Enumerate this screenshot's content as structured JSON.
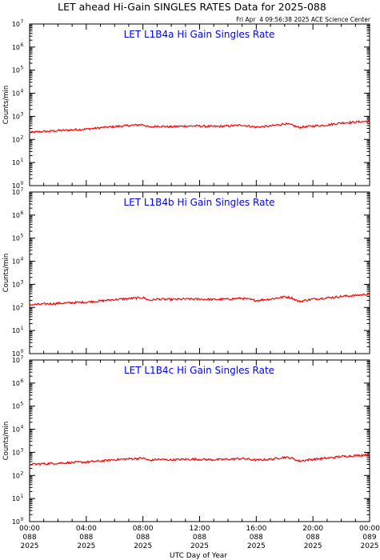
{
  "header": {
    "title": "LET ahead Hi-Gain SINGLES RATES Data for 2025-088",
    "timestamp": "Fri Apr  4 09:56:38 2025 ACE Science Center"
  },
  "colors": {
    "series": "#ff0000",
    "panel_title": "#0000ff",
    "axis": "#000000"
  },
  "chart_data": [
    {
      "type": "line",
      "title": "LET L1B4a Hi Gain Singles Rate",
      "ylabel": "Counts/min",
      "yscale": "log",
      "ylim": [
        1,
        10000000
      ],
      "xlim": [
        0,
        24
      ],
      "ytick_labels": [
        {
          "base": "10",
          "exp": "0"
        },
        {
          "base": "10",
          "exp": "1"
        },
        {
          "base": "10",
          "exp": "2"
        },
        {
          "base": "10",
          "exp": "3"
        },
        {
          "base": "10",
          "exp": "4"
        },
        {
          "base": "10",
          "exp": "5"
        },
        {
          "base": "10",
          "exp": "6"
        },
        {
          "base": "10",
          "exp": "7"
        }
      ],
      "series": [
        {
          "x": [
            0,
            1,
            2,
            3,
            4,
            5,
            6,
            7,
            8,
            8.5,
            9,
            10,
            11,
            12,
            13,
            14,
            15,
            16,
            17,
            18,
            18.5,
            19,
            20,
            21,
            22,
            23,
            24
          ],
          "values": [
            200,
            220,
            240,
            260,
            280,
            320,
            360,
            400,
            440,
            330,
            380,
            350,
            380,
            380,
            360,
            380,
            420,
            340,
            380,
            480,
            420,
            330,
            380,
            420,
            520,
            560,
            620
          ]
        }
      ]
    },
    {
      "type": "line",
      "title": "LET L1B4b Hi Gain Singles Rate",
      "ylabel": "Counts/min",
      "yscale": "log",
      "ylim": [
        1,
        10000000
      ],
      "xlim": [
        0,
        24
      ],
      "ytick_labels": [
        {
          "base": "10",
          "exp": "0"
        },
        {
          "base": "10",
          "exp": "1"
        },
        {
          "base": "10",
          "exp": "2"
        },
        {
          "base": "10",
          "exp": "3"
        },
        {
          "base": "10",
          "exp": "4"
        },
        {
          "base": "10",
          "exp": "5"
        },
        {
          "base": "10",
          "exp": "6"
        },
        {
          "base": "10",
          "exp": "7"
        }
      ],
      "series": [
        {
          "x": [
            0,
            1,
            2,
            3,
            4,
            5,
            6,
            7,
            8,
            8.5,
            9,
            10,
            11,
            12,
            13,
            14,
            15,
            16,
            17,
            18,
            18.5,
            19,
            20,
            21,
            22,
            23,
            24
          ],
          "values": [
            130,
            140,
            150,
            160,
            170,
            190,
            220,
            240,
            270,
            200,
            230,
            220,
            230,
            230,
            220,
            230,
            250,
            200,
            230,
            290,
            260,
            180,
            230,
            260,
            300,
            330,
            380
          ]
        }
      ]
    },
    {
      "type": "line",
      "title": "LET L1B4c Hi Gain Singles Rate",
      "ylabel": "Counts/min",
      "yscale": "log",
      "ylim": [
        1,
        10000000
      ],
      "xlim": [
        0,
        24
      ],
      "ytick_labels": [
        {
          "base": "10",
          "exp": "0"
        },
        {
          "base": "10",
          "exp": "1"
        },
        {
          "base": "10",
          "exp": "2"
        },
        {
          "base": "10",
          "exp": "3"
        },
        {
          "base": "10",
          "exp": "4"
        },
        {
          "base": "10",
          "exp": "5"
        },
        {
          "base": "10",
          "exp": "6"
        },
        {
          "base": "10",
          "exp": "7"
        }
      ],
      "series": [
        {
          "x": [
            0,
            1,
            2,
            3,
            4,
            5,
            6,
            7,
            8,
            8.5,
            9,
            10,
            11,
            12,
            13,
            14,
            15,
            16,
            17,
            18,
            18.5,
            19,
            20,
            21,
            22,
            23,
            24
          ],
          "values": [
            300,
            320,
            340,
            360,
            380,
            420,
            480,
            520,
            560,
            440,
            500,
            470,
            500,
            500,
            480,
            500,
            540,
            460,
            500,
            620,
            560,
            420,
            500,
            560,
            660,
            720,
            800
          ]
        }
      ]
    }
  ],
  "xaxis": {
    "title": "UTC Day of Year",
    "ticks": [
      {
        "hour": 0,
        "lines": [
          "00:00",
          "088",
          "2025"
        ]
      },
      {
        "hour": 4,
        "lines": [
          "04:00",
          "088",
          "2025"
        ]
      },
      {
        "hour": 8,
        "lines": [
          "08:00",
          "088",
          "2025"
        ]
      },
      {
        "hour": 12,
        "lines": [
          "12:00",
          "088",
          "2025"
        ]
      },
      {
        "hour": 16,
        "lines": [
          "16:00",
          "088",
          "2025"
        ]
      },
      {
        "hour": 20,
        "lines": [
          "20:00",
          "088",
          "2025"
        ]
      },
      {
        "hour": 24,
        "lines": [
          "00:00",
          "089",
          "2025"
        ]
      }
    ]
  }
}
